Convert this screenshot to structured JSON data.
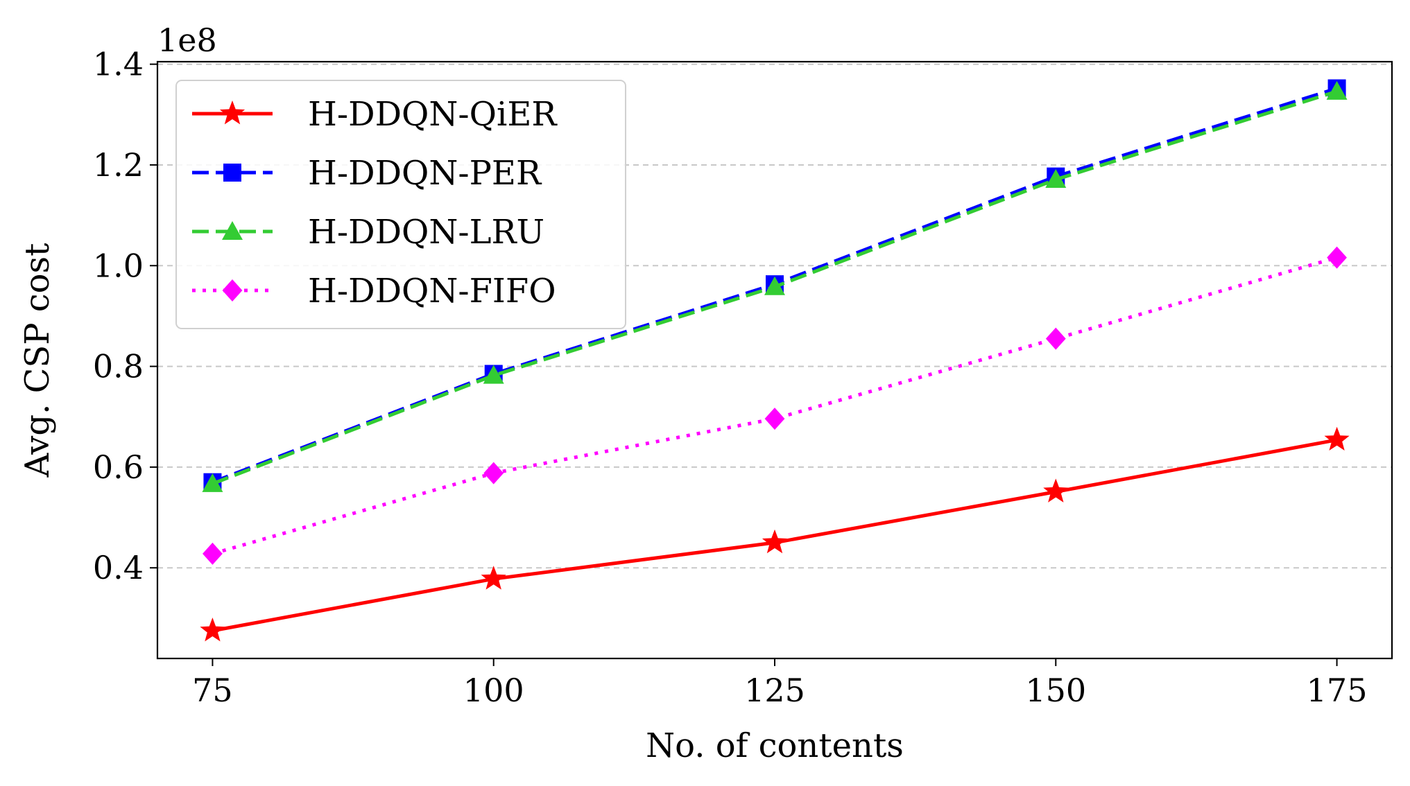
{
  "chart_data": {
    "type": "line",
    "title": "",
    "xlabel": "No. of contents",
    "ylabel": "Avg. CSP cost",
    "y_offset_label": "1e8",
    "y_scale": 100000000,
    "x": [
      75,
      100,
      125,
      150,
      175
    ],
    "x_ticks": [
      "75",
      "100",
      "125",
      "150",
      "175"
    ],
    "y_ticks": [
      0.4,
      0.6,
      0.8,
      1.0,
      1.2,
      1.4
    ],
    "y_tick_labels": [
      "0.4",
      "0.6",
      "0.8",
      "1.0",
      "1.2",
      "1.4"
    ],
    "xlim": [
      70.1,
      179.9
    ],
    "ylim": [
      0.22,
      1.405
    ],
    "grid": "y-dashed",
    "legend_placement": "top-left",
    "series": [
      {
        "name": "H-DDQN-QiER",
        "color": "#ff0000",
        "line_style": "solid",
        "marker": "star-icon",
        "values": [
          0.275,
          0.378,
          0.45,
          0.551,
          0.654
        ]
      },
      {
        "name": "H-DDQN-PER",
        "color": "#0000ff",
        "line_style": "dashed",
        "marker": "square-icon",
        "values": [
          0.57,
          0.785,
          0.963,
          1.177,
          1.352
        ]
      },
      {
        "name": "H-DDQN-LRU",
        "color": "#33cc33",
        "line_style": "dashed",
        "marker": "triangle-icon",
        "values": [
          0.567,
          0.782,
          0.958,
          1.171,
          1.346
        ]
      },
      {
        "name": "H-DDQN-FIFO",
        "color": "#ff00ff",
        "line_style": "dotted",
        "marker": "diamond-icon",
        "values": [
          0.428,
          0.588,
          0.696,
          0.855,
          1.016
        ]
      }
    ]
  }
}
